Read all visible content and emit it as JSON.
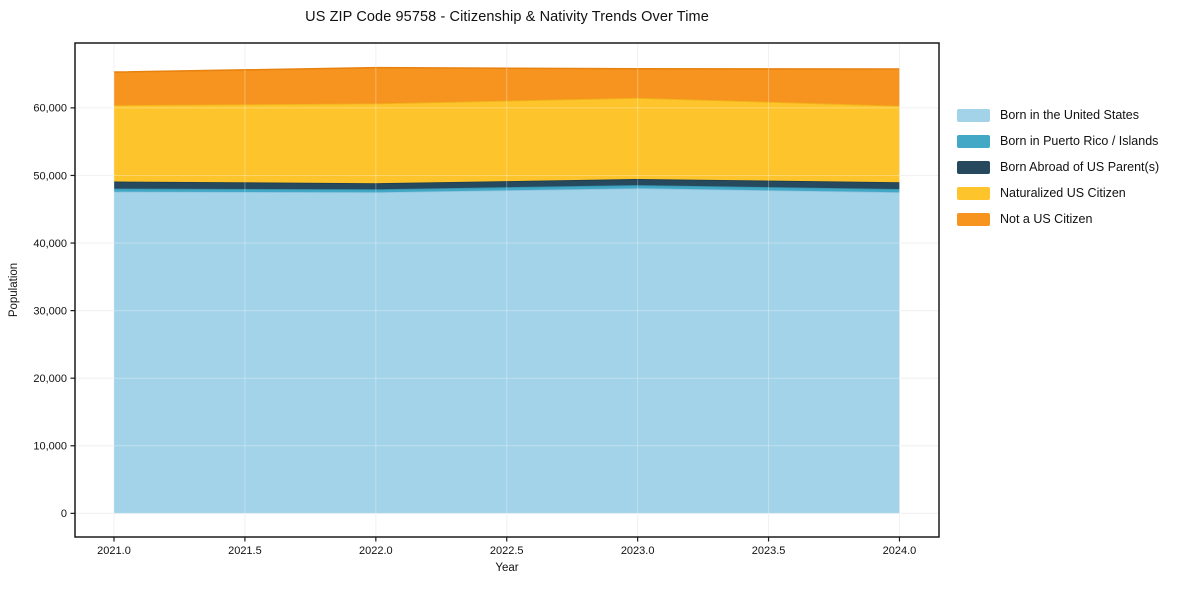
{
  "chart_data": {
    "type": "area",
    "stacked": true,
    "title": "US ZIP Code 95758 - Citizenship & Nativity Trends Over Time",
    "xlabel": "Year",
    "ylabel": "Population",
    "x": [
      2021,
      2022,
      2023,
      2024
    ],
    "series": [
      {
        "name": "Born in the United States",
        "color": "#a3d3e9",
        "edge": "#8ec6e0",
        "values": [
          47600,
          47500,
          48100,
          47500
        ]
      },
      {
        "name": "Born in Puerto Rico / Islands",
        "color": "#42a8c5",
        "edge": "#3793ae",
        "values": [
          450,
          450,
          480,
          500
        ]
      },
      {
        "name": "Born Abroad of US Parent(s)",
        "color": "#26495d",
        "edge": "#1e3c4d",
        "values": [
          1050,
          900,
          900,
          1000
        ]
      },
      {
        "name": "Naturalized US Citizen",
        "color": "#fdc42c",
        "edge": "#f0b318",
        "values": [
          11300,
          11800,
          12000,
          11300
        ]
      },
      {
        "name": "Not a US Citizen",
        "color": "#f79420",
        "edge": "#e8820f",
        "values": [
          4900,
          5300,
          4300,
          5450
        ]
      }
    ],
    "xticks": [
      {
        "value": 2021.0,
        "label": "2021.0"
      },
      {
        "value": 2021.5,
        "label": "2021.5"
      },
      {
        "value": 2022.0,
        "label": "2022.0"
      },
      {
        "value": 2022.5,
        "label": "2022.5"
      },
      {
        "value": 2023.0,
        "label": "2023.0"
      },
      {
        "value": 2023.5,
        "label": "2023.5"
      },
      {
        "value": 2024.0,
        "label": "2024.0"
      }
    ],
    "yticks": [
      {
        "value": 0,
        "label": "0"
      },
      {
        "value": 10000,
        "label": "10,000"
      },
      {
        "value": 20000,
        "label": "20,000"
      },
      {
        "value": 30000,
        "label": "30,000"
      },
      {
        "value": 40000,
        "label": "40,000"
      },
      {
        "value": 50000,
        "label": "50,000"
      },
      {
        "value": 60000,
        "label": "60,000"
      }
    ],
    "xlim": [
      2020.851,
      2024.151
    ],
    "ylim": [
      -3500,
      69600
    ],
    "grid": true,
    "legend_position": "right-outside",
    "colors": {
      "background": "#ffffff",
      "frame": "#1a1a1a",
      "grid": "#ececec",
      "grid_overlay": "rgba(255,255,255,0.30)",
      "tick": "#1a1a1a"
    }
  }
}
